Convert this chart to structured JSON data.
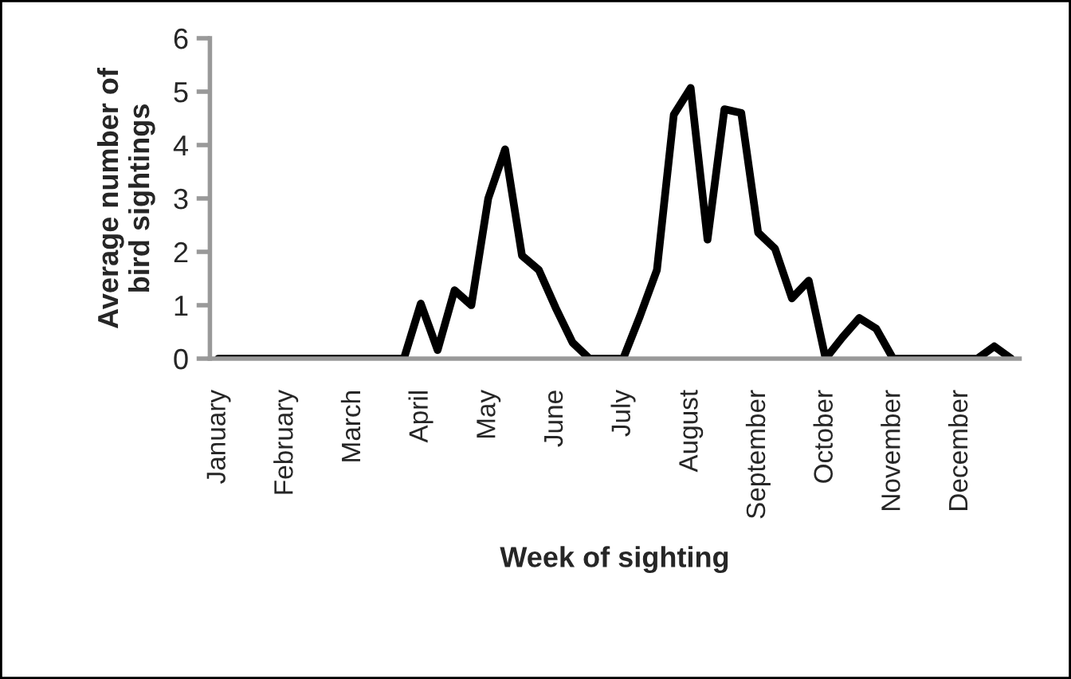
{
  "chart_data": {
    "type": "line",
    "xlabel": "Week of sighting",
    "ylabel": "Average number of bird sightings",
    "categories": [
      "January",
      null,
      null,
      null,
      "February",
      null,
      null,
      null,
      "March",
      null,
      null,
      null,
      "April",
      null,
      null,
      null,
      "May",
      null,
      null,
      null,
      "June",
      null,
      null,
      null,
      "July",
      null,
      null,
      null,
      "August",
      null,
      null,
      null,
      "September",
      null,
      null,
      null,
      "October",
      null,
      null,
      null,
      "November",
      null,
      null,
      null,
      "December",
      null,
      null,
      null
    ],
    "series": [
      {
        "color": "#000000",
        "values": [
          0,
          0,
          0,
          0,
          0,
          0,
          0,
          0,
          0,
          0,
          0,
          0,
          1.03,
          0.16,
          1.28,
          1.0,
          3.0,
          3.92,
          1.93,
          1.66,
          0.95,
          0.3,
          0,
          0,
          0,
          0.8,
          1.66,
          4.57,
          5.07,
          2.23,
          4.67,
          4.6,
          2.36,
          2.06,
          1.13,
          1.46,
          0,
          0.4,
          0.76,
          0.56,
          0,
          0,
          0,
          0,
          0,
          0,
          0.23,
          0
        ]
      }
    ],
    "ylim": [
      0,
      6
    ],
    "yticks": [
      0,
      1,
      2,
      3,
      4,
      5,
      6
    ],
    "grid": false,
    "legend": false,
    "marker": "none",
    "line_style": "solid"
  }
}
